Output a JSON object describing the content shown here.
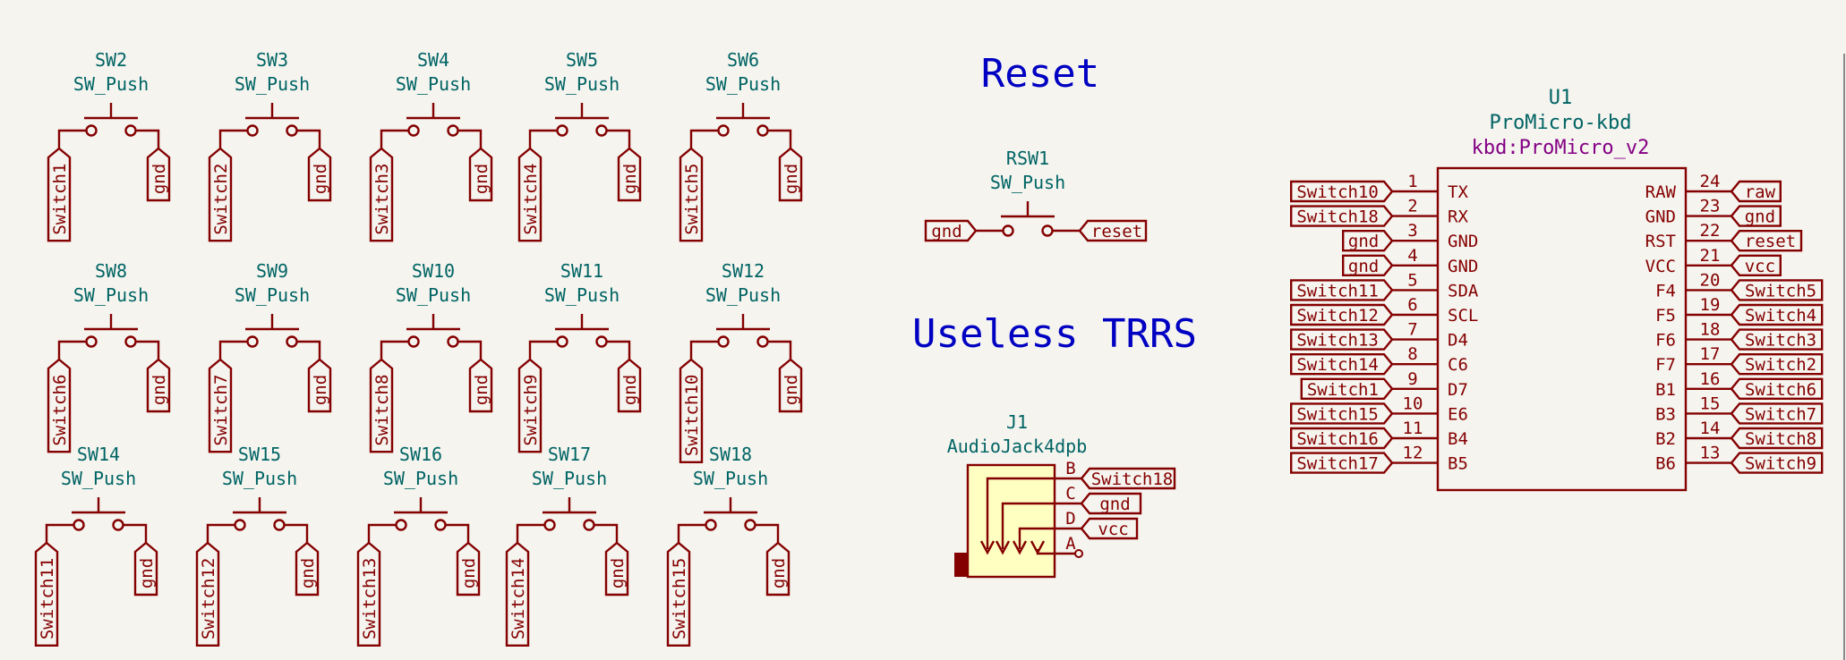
{
  "sheet": {
    "notes": [
      "Reset",
      "Useless TRRS"
    ]
  },
  "switches": [
    {
      "ref": "SW2",
      "value": "SW_Push",
      "left_net": "Switch1",
      "right_net": "gnd"
    },
    {
      "ref": "SW3",
      "value": "SW_Push",
      "left_net": "Switch2",
      "right_net": "gnd"
    },
    {
      "ref": "SW4",
      "value": "SW_Push",
      "left_net": "Switch3",
      "right_net": "gnd"
    },
    {
      "ref": "SW5",
      "value": "SW_Push",
      "left_net": "Switch4",
      "right_net": "gnd"
    },
    {
      "ref": "SW6",
      "value": "SW_Push",
      "left_net": "Switch5",
      "right_net": "gnd"
    },
    {
      "ref": "SW8",
      "value": "SW_Push",
      "left_net": "Switch6",
      "right_net": "gnd"
    },
    {
      "ref": "SW9",
      "value": "SW_Push",
      "left_net": "Switch7",
      "right_net": "gnd"
    },
    {
      "ref": "SW10",
      "value": "SW_Push",
      "left_net": "Switch8",
      "right_net": "gnd"
    },
    {
      "ref": "SW11",
      "value": "SW_Push",
      "left_net": "Switch9",
      "right_net": "gnd"
    },
    {
      "ref": "SW12",
      "value": "SW_Push",
      "left_net": "Switch10",
      "right_net": "gnd"
    },
    {
      "ref": "SW14",
      "value": "SW_Push",
      "left_net": "Switch11",
      "right_net": "gnd"
    },
    {
      "ref": "SW15",
      "value": "SW_Push",
      "left_net": "Switch12",
      "right_net": "gnd"
    },
    {
      "ref": "SW16",
      "value": "SW_Push",
      "left_net": "Switch13",
      "right_net": "gnd"
    },
    {
      "ref": "SW17",
      "value": "SW_Push",
      "left_net": "Switch14",
      "right_net": "gnd"
    },
    {
      "ref": "SW18",
      "value": "SW_Push",
      "left_net": "Switch15",
      "right_net": "gnd"
    }
  ],
  "reset_switch": {
    "ref": "RSW1",
    "value": "SW_Push",
    "left_net": "gnd",
    "right_net": "reset"
  },
  "jack": {
    "ref": "J1",
    "value": "AudioJack4dpb",
    "pins": [
      {
        "pin": "B",
        "net": "Switch18"
      },
      {
        "pin": "C",
        "net": "gnd"
      },
      {
        "pin": "D",
        "net": "vcc"
      },
      {
        "pin": "A",
        "net": ""
      }
    ]
  },
  "mcu": {
    "ref": "U1",
    "value": "ProMicro-kbd",
    "footprint": "kbd:ProMicro_v2",
    "left_pins": [
      {
        "num": "1",
        "name": "TX",
        "net": "Switch10"
      },
      {
        "num": "2",
        "name": "RX",
        "net": "Switch18"
      },
      {
        "num": "3",
        "name": "GND",
        "net": "gnd"
      },
      {
        "num": "4",
        "name": "GND",
        "net": "gnd"
      },
      {
        "num": "5",
        "name": "SDA",
        "net": "Switch11"
      },
      {
        "num": "6",
        "name": "SCL",
        "net": "Switch12"
      },
      {
        "num": "7",
        "name": "D4",
        "net": "Switch13"
      },
      {
        "num": "8",
        "name": "C6",
        "net": "Switch14"
      },
      {
        "num": "9",
        "name": "D7",
        "net": "Switch1"
      },
      {
        "num": "10",
        "name": "E6",
        "net": "Switch15"
      },
      {
        "num": "11",
        "name": "B4",
        "net": "Switch16"
      },
      {
        "num": "12",
        "name": "B5",
        "net": "Switch17"
      }
    ],
    "right_pins": [
      {
        "num": "24",
        "name": "RAW",
        "net": "raw"
      },
      {
        "num": "23",
        "name": "GND",
        "net": "gnd"
      },
      {
        "num": "22",
        "name": "RST",
        "net": "reset"
      },
      {
        "num": "21",
        "name": "VCC",
        "net": "vcc"
      },
      {
        "num": "20",
        "name": "F4",
        "net": "Switch5"
      },
      {
        "num": "19",
        "name": "F5",
        "net": "Switch4"
      },
      {
        "num": "18",
        "name": "F6",
        "net": "Switch3"
      },
      {
        "num": "17",
        "name": "F7",
        "net": "Switch2"
      },
      {
        "num": "16",
        "name": "B1",
        "net": "Switch6"
      },
      {
        "num": "15",
        "name": "B3",
        "net": "Switch7"
      },
      {
        "num": "14",
        "name": "B2",
        "net": "Switch8"
      },
      {
        "num": "13",
        "name": "B6",
        "net": "Switch9"
      }
    ]
  },
  "colors": {
    "background": "#f5f4ef",
    "symbol": "#840000",
    "reference": "#006464",
    "note": "#0000c2",
    "footprint": "#840084",
    "jack_fill": "#ffffc2"
  }
}
